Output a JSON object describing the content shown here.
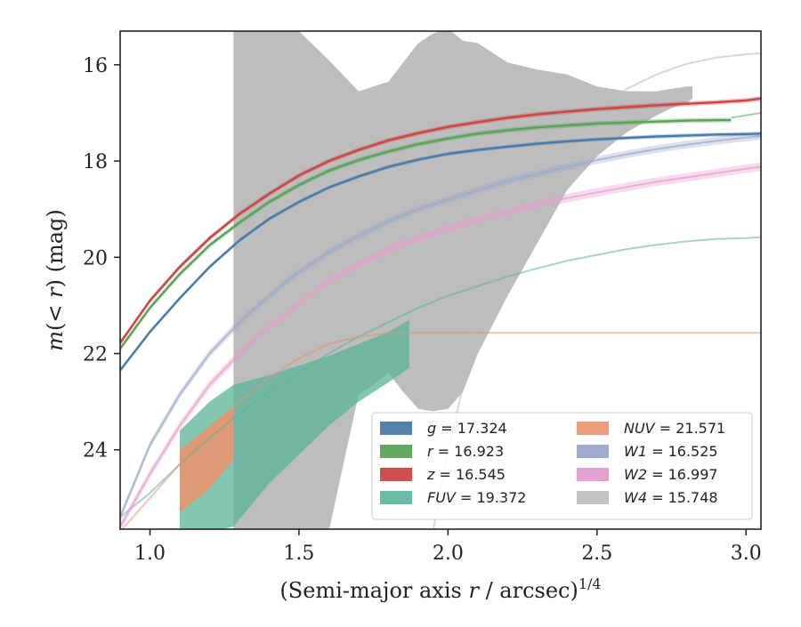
{
  "chart_data": {
    "type": "line",
    "xlabel_parts": [
      "(Semi-major axis ",
      "r",
      " / arcsec)",
      "1/4"
    ],
    "ylabel_parts": [
      "m",
      "(< ",
      "r",
      ") (mag)"
    ],
    "xlim": [
      0.9,
      3.05
    ],
    "ylim": [
      25.65,
      15.3
    ],
    "y_inverted": true,
    "xticks": [
      1.0,
      1.5,
      2.0,
      2.5,
      3.0
    ],
    "xtick_labels": [
      "1.0",
      "1.5",
      "2.0",
      "2.5",
      "3.0"
    ],
    "yticks": [
      16,
      18,
      20,
      22,
      24
    ],
    "ytick_labels": [
      "16",
      "18",
      "20",
      "22",
      "24"
    ],
    "grid": false,
    "legend_position": "lower-right",
    "series": [
      {
        "key": "g",
        "band": "g",
        "value": "17.324",
        "color": "#4a7ba8",
        "band_type": "line",
        "x": [
          0.9,
          1.0,
          1.1,
          1.2,
          1.3,
          1.4,
          1.5,
          1.6,
          1.7,
          1.8,
          1.9,
          2.0,
          2.1,
          2.2,
          2.3,
          2.4,
          2.5,
          2.6,
          2.7,
          2.8,
          2.9,
          3.0,
          3.05
        ],
        "y": [
          22.35,
          21.55,
          20.85,
          20.2,
          19.65,
          19.2,
          18.85,
          18.55,
          18.32,
          18.12,
          17.97,
          17.85,
          17.77,
          17.7,
          17.64,
          17.59,
          17.55,
          17.52,
          17.49,
          17.47,
          17.45,
          17.44,
          17.43
        ],
        "err": 0.04
      },
      {
        "key": "r",
        "band": "r",
        "value": "16.923",
        "color": "#5aa35a",
        "band_type": "line",
        "x": [
          0.9,
          1.0,
          1.1,
          1.2,
          1.3,
          1.4,
          1.5,
          1.6,
          1.7,
          1.8,
          1.9,
          2.0,
          2.1,
          2.2,
          2.3,
          2.4,
          2.5,
          2.6,
          2.7,
          2.8,
          2.9,
          2.95
        ],
        "y": [
          21.9,
          21.05,
          20.35,
          19.75,
          19.28,
          18.85,
          18.5,
          18.2,
          17.98,
          17.8,
          17.65,
          17.53,
          17.43,
          17.36,
          17.3,
          17.26,
          17.22,
          17.2,
          17.18,
          17.16,
          17.15,
          17.15
        ],
        "err": 0.05,
        "faded_x": [
          2.95,
          3.05
        ],
        "faded_y": [
          17.1,
          17.0
        ]
      },
      {
        "key": "z",
        "band": "z",
        "value": "16.545",
        "color": "#cc4444",
        "band_type": "line",
        "x": [
          0.9,
          1.0,
          1.1,
          1.2,
          1.3,
          1.4,
          1.5,
          1.6,
          1.7,
          1.8,
          1.9,
          2.0,
          2.1,
          2.2,
          2.3,
          2.4,
          2.5,
          2.6,
          2.7,
          2.8,
          2.9,
          3.0,
          3.05
        ],
        "y": [
          21.78,
          20.9,
          20.2,
          19.6,
          19.1,
          18.68,
          18.3,
          18.0,
          17.77,
          17.57,
          17.42,
          17.29,
          17.19,
          17.1,
          17.03,
          16.97,
          16.92,
          16.88,
          16.84,
          16.81,
          16.78,
          16.74,
          16.7
        ],
        "err": 0.05
      },
      {
        "key": "fuv",
        "band": "FUV",
        "value": "19.372",
        "color": "#5ab49a",
        "band_type": "shade",
        "x": [
          0.9,
          1.0,
          1.1,
          1.2,
          1.3,
          1.4,
          1.5,
          1.6,
          1.7,
          1.8,
          1.9,
          2.0,
          2.1,
          2.2,
          2.3,
          2.4,
          2.5,
          2.6,
          2.7,
          2.8,
          2.9,
          3.0,
          3.05
        ],
        "y": [
          25.4,
          24.9,
          24.3,
          23.75,
          23.25,
          22.8,
          22.4,
          22.0,
          21.65,
          21.35,
          21.05,
          20.8,
          20.6,
          20.4,
          20.23,
          20.07,
          19.95,
          19.83,
          19.74,
          19.67,
          19.62,
          19.6,
          19.58
        ],
        "shade_x": [
          1.1,
          1.2,
          1.28,
          1.4,
          1.5,
          1.6,
          1.7,
          1.8,
          1.87
        ],
        "shade_upper": [
          23.6,
          23.0,
          22.65,
          22.45,
          22.25,
          22.05,
          21.8,
          21.55,
          21.3
        ],
        "shade_lower": [
          25.7,
          25.7,
          25.6,
          24.7,
          24.1,
          23.5,
          23.0,
          22.6,
          22.3
        ]
      },
      {
        "key": "nuv",
        "band": "NUV",
        "value": "21.571",
        "color": "#e8946e",
        "band_type": "shade",
        "x": [
          0.9,
          1.0,
          1.1,
          1.2,
          1.3,
          1.4,
          1.5,
          1.6,
          1.7,
          1.8,
          1.9,
          2.0,
          2.5,
          3.05
        ],
        "y": [
          25.7,
          25.0,
          24.3,
          23.6,
          23.0,
          22.5,
          22.1,
          21.8,
          21.65,
          21.58,
          21.57,
          21.57,
          21.57,
          21.57
        ],
        "shade_x": [
          1.1,
          1.2,
          1.28
        ],
        "shade_upper": [
          24.0,
          23.5,
          23.1
        ],
        "shade_lower": [
          25.3,
          24.8,
          24.2
        ]
      },
      {
        "key": "w1",
        "band": "W1",
        "value": "16.525",
        "color": "#9aa8cc",
        "band_type": "line",
        "x": [
          0.9,
          1.0,
          1.1,
          1.2,
          1.3,
          1.4,
          1.5,
          1.6,
          1.7,
          1.8,
          1.9,
          2.0,
          2.1,
          2.2,
          2.3,
          2.4,
          2.5,
          2.6,
          2.7,
          2.8,
          2.9,
          3.0,
          3.05
        ],
        "y": [
          25.4,
          23.9,
          22.85,
          22.0,
          21.35,
          20.8,
          20.3,
          19.9,
          19.55,
          19.25,
          19.0,
          18.8,
          18.6,
          18.42,
          18.27,
          18.12,
          17.98,
          17.86,
          17.75,
          17.66,
          17.58,
          17.51,
          17.48
        ],
        "err": 0.08
      },
      {
        "key": "w2",
        "band": "W2",
        "value": "16.997",
        "color": "#e49ccc",
        "band_type": "line",
        "x": [
          0.9,
          1.0,
          1.1,
          1.2,
          1.3,
          1.4,
          1.5,
          1.6,
          1.7,
          1.8,
          1.9,
          2.0,
          2.1,
          2.2,
          2.3,
          2.4,
          2.5,
          2.6,
          2.7,
          2.8,
          2.9,
          3.0,
          3.05
        ],
        "y": [
          25.6,
          24.5,
          23.5,
          22.65,
          22.0,
          21.45,
          20.95,
          20.5,
          20.15,
          19.85,
          19.6,
          19.4,
          19.22,
          19.06,
          18.9,
          18.77,
          18.65,
          18.54,
          18.43,
          18.34,
          18.25,
          18.16,
          18.12
        ],
        "err": 0.09
      },
      {
        "key": "w4",
        "band": "W4",
        "value": "15.748",
        "color": "#bdbdbd",
        "band_type": "shade",
        "x": [
          1.95,
          2.0,
          2.05,
          2.1,
          2.2,
          2.3,
          2.4,
          2.5,
          2.6,
          2.7,
          2.8,
          2.9,
          3.0,
          3.05
        ],
        "y": [
          25.7,
          24.0,
          22.7,
          21.4,
          19.7,
          18.6,
          17.7,
          17.0,
          16.5,
          16.2,
          15.98,
          15.85,
          15.78,
          15.76
        ],
        "shade_x": [
          1.28,
          1.35,
          1.4,
          1.5,
          1.6,
          1.7,
          1.75,
          1.8,
          1.85,
          1.9,
          1.95,
          2.0,
          2.05,
          2.1,
          2.2,
          2.3,
          2.4,
          2.5,
          2.6,
          2.7,
          2.75,
          2.8,
          2.82
        ],
        "shade_upper": [
          15.3,
          15.3,
          15.3,
          15.3,
          15.9,
          16.55,
          16.45,
          16.35,
          15.95,
          15.55,
          15.35,
          15.25,
          15.5,
          15.55,
          15.95,
          16.1,
          16.2,
          16.45,
          16.55,
          16.55,
          16.5,
          16.45,
          16.45
        ],
        "shade_lower": [
          25.7,
          25.7,
          25.7,
          25.7,
          25.7,
          22.85,
          22.65,
          22.4,
          22.8,
          23.15,
          23.2,
          23.15,
          22.8,
          22.0,
          20.8,
          19.7,
          18.6,
          17.9,
          17.4,
          17.05,
          16.9,
          16.8,
          16.7
        ]
      }
    ]
  }
}
